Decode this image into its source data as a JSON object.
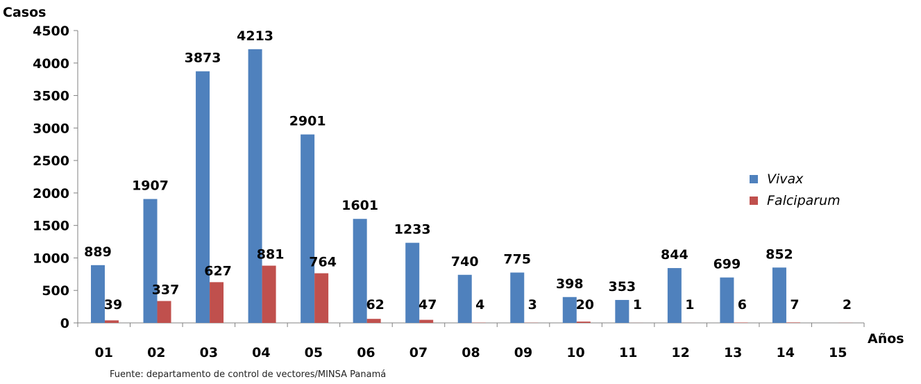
{
  "chart_data": {
    "type": "bar",
    "title": "",
    "ylabel": "Casos",
    "xlabel": "Años",
    "ylim": [
      0,
      4500
    ],
    "yticks": [
      0,
      500,
      1000,
      1500,
      2000,
      2500,
      3000,
      3500,
      4000,
      4500
    ],
    "categories": [
      "01",
      "02",
      "03",
      "04",
      "05",
      "06",
      "07",
      "08",
      "09",
      "10",
      "11",
      "12",
      "13",
      "14",
      "15"
    ],
    "series": [
      {
        "name": "Vivax",
        "color": "#4f81bd",
        "values": [
          889,
          1907,
          3873,
          4213,
          2901,
          1601,
          1233,
          740,
          775,
          398,
          353,
          844,
          699,
          852,
          null
        ]
      },
      {
        "name": "Falciparum",
        "color": "#c0504d",
        "values": [
          39,
          337,
          627,
          881,
          764,
          62,
          47,
          4,
          3,
          20,
          1,
          1,
          6,
          7,
          2
        ]
      }
    ],
    "grid": false,
    "legend_position": "right"
  },
  "source": "Fuente: departamento de control de vectores/MINSA Panamá"
}
